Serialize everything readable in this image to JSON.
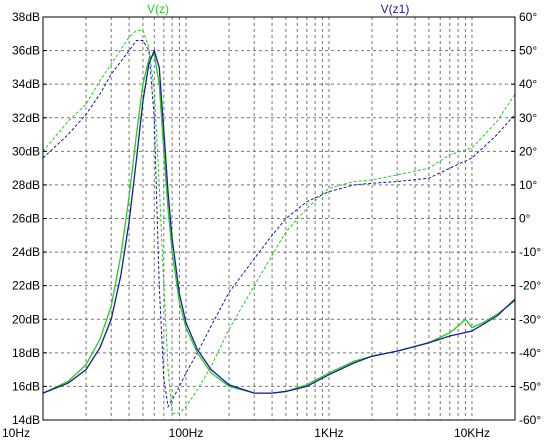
{
  "chart_data": {
    "type": "line",
    "x_scale": "log",
    "xlim": [
      10,
      20000
    ],
    "ylim_left": [
      14,
      38
    ],
    "ylim_right": [
      -60,
      60
    ],
    "grid": true,
    "x_ticks": [
      {
        "value": 10,
        "label": "10Hz"
      },
      {
        "value": 100,
        "label": "100Hz"
      },
      {
        "value": 1000,
        "label": "1KHz"
      },
      {
        "value": 10000,
        "label": "10KHz"
      }
    ],
    "y_left_ticks": [
      {
        "value": 14,
        "label": "14dB"
      },
      {
        "value": 16,
        "label": "16dB"
      },
      {
        "value": 18,
        "label": "18dB"
      },
      {
        "value": 20,
        "label": "20dB"
      },
      {
        "value": 22,
        "label": "22dB"
      },
      {
        "value": 24,
        "label": "24dB"
      },
      {
        "value": 26,
        "label": "26dB"
      },
      {
        "value": 28,
        "label": "28dB"
      },
      {
        "value": 30,
        "label": "30dB"
      },
      {
        "value": 32,
        "label": "32dB"
      },
      {
        "value": 34,
        "label": "34dB"
      },
      {
        "value": 36,
        "label": "36dB"
      },
      {
        "value": 38,
        "label": "38dB"
      }
    ],
    "y_right_ticks": [
      {
        "value": -60,
        "label": "-60°"
      },
      {
        "value": -50,
        "label": "-50°"
      },
      {
        "value": -40,
        "label": "-40°"
      },
      {
        "value": -30,
        "label": "-30°"
      },
      {
        "value": -20,
        "label": "-20°"
      },
      {
        "value": -10,
        "label": "-10°"
      },
      {
        "value": 0,
        "label": "0°"
      },
      {
        "value": 10,
        "label": "10°"
      },
      {
        "value": 20,
        "label": "20°"
      },
      {
        "value": 30,
        "label": "30°"
      },
      {
        "value": 40,
        "label": "40°"
      },
      {
        "value": 50,
        "label": "50°"
      },
      {
        "value": 60,
        "label": "60°"
      }
    ],
    "series": [
      {
        "name": "V(z)",
        "color": "#22cc22",
        "magnitude_db": [
          [
            10,
            15.6
          ],
          [
            15,
            16.3
          ],
          [
            20,
            17.3
          ],
          [
            25,
            18.8
          ],
          [
            30,
            20.8
          ],
          [
            35,
            23.8
          ],
          [
            40,
            27.3
          ],
          [
            45,
            31.0
          ],
          [
            50,
            34.0
          ],
          [
            55,
            35.5
          ],
          [
            60,
            35.8
          ],
          [
            65,
            34.0
          ],
          [
            70,
            30.0
          ],
          [
            75,
            26.5
          ],
          [
            80,
            24.0
          ],
          [
            90,
            21.0
          ],
          [
            100,
            19.5
          ],
          [
            120,
            18.0
          ],
          [
            150,
            16.8
          ],
          [
            200,
            16.0
          ],
          [
            300,
            15.6
          ],
          [
            400,
            15.6
          ],
          [
            500,
            15.7
          ],
          [
            700,
            16.1
          ],
          [
            1000,
            16.8
          ],
          [
            1500,
            17.5
          ],
          [
            2000,
            17.8
          ],
          [
            3000,
            18.1
          ],
          [
            5000,
            18.6
          ],
          [
            7000,
            19.2
          ],
          [
            8000,
            19.6
          ],
          [
            9000,
            20.0
          ],
          [
            10000,
            19.5
          ],
          [
            12000,
            19.8
          ],
          [
            15000,
            20.3
          ],
          [
            20000,
            21.1
          ]
        ],
        "phase_deg": [
          [
            10,
            20
          ],
          [
            15,
            29
          ],
          [
            20,
            34
          ],
          [
            25,
            41
          ],
          [
            30,
            46
          ],
          [
            40,
            54
          ],
          [
            45,
            56
          ],
          [
            50,
            56
          ],
          [
            55,
            51
          ],
          [
            60,
            38
          ],
          [
            65,
            10
          ],
          [
            70,
            -20
          ],
          [
            75,
            -45
          ],
          [
            80,
            -58
          ],
          [
            90,
            -58
          ],
          [
            100,
            -56
          ],
          [
            120,
            -51
          ],
          [
            150,
            -44
          ],
          [
            200,
            -33
          ],
          [
            300,
            -20
          ],
          [
            400,
            -11
          ],
          [
            500,
            -4
          ],
          [
            700,
            3
          ],
          [
            1000,
            9
          ],
          [
            1500,
            11
          ],
          [
            2000,
            11.5
          ],
          [
            3000,
            13
          ],
          [
            5000,
            15
          ],
          [
            7000,
            19
          ],
          [
            10000,
            21
          ],
          [
            15000,
            29
          ],
          [
            20000,
            37
          ]
        ]
      },
      {
        "name": "V(z1)",
        "color": "#1a1aa6",
        "magnitude_db": [
          [
            10,
            15.6
          ],
          [
            15,
            16.2
          ],
          [
            20,
            17.0
          ],
          [
            25,
            18.3
          ],
          [
            30,
            20.0
          ],
          [
            35,
            22.6
          ],
          [
            40,
            25.8
          ],
          [
            45,
            29.5
          ],
          [
            50,
            33.0
          ],
          [
            55,
            35.2
          ],
          [
            60,
            36.0
          ],
          [
            65,
            35.0
          ],
          [
            70,
            31.2
          ],
          [
            75,
            27.5
          ],
          [
            80,
            24.8
          ],
          [
            90,
            21.5
          ],
          [
            100,
            19.8
          ],
          [
            120,
            18.2
          ],
          [
            150,
            17.0
          ],
          [
            200,
            16.1
          ],
          [
            300,
            15.6
          ],
          [
            400,
            15.6
          ],
          [
            500,
            15.7
          ],
          [
            700,
            16.0
          ],
          [
            1000,
            16.7
          ],
          [
            1500,
            17.4
          ],
          [
            2000,
            17.8
          ],
          [
            3000,
            18.1
          ],
          [
            5000,
            18.6
          ],
          [
            7000,
            19.0
          ],
          [
            10000,
            19.3
          ],
          [
            15000,
            20.2
          ],
          [
            20000,
            21.2
          ]
        ],
        "phase_deg": [
          [
            10,
            18
          ],
          [
            15,
            25
          ],
          [
            20,
            31
          ],
          [
            25,
            37
          ],
          [
            30,
            43
          ],
          [
            40,
            50
          ],
          [
            45,
            53
          ],
          [
            50,
            53
          ],
          [
            55,
            50
          ],
          [
            60,
            30
          ],
          [
            65,
            -20
          ],
          [
            70,
            -48
          ],
          [
            75,
            -56
          ],
          [
            80,
            -54
          ],
          [
            90,
            -50
          ],
          [
            100,
            -46
          ],
          [
            120,
            -40
          ],
          [
            150,
            -32
          ],
          [
            200,
            -22
          ],
          [
            300,
            -12
          ],
          [
            400,
            -5
          ],
          [
            500,
            0
          ],
          [
            700,
            5
          ],
          [
            1000,
            8
          ],
          [
            1500,
            10
          ],
          [
            2000,
            10.5
          ],
          [
            3000,
            11
          ],
          [
            5000,
            12
          ],
          [
            7000,
            15
          ],
          [
            10000,
            18
          ],
          [
            15000,
            25
          ],
          [
            20000,
            31
          ]
        ]
      }
    ]
  }
}
